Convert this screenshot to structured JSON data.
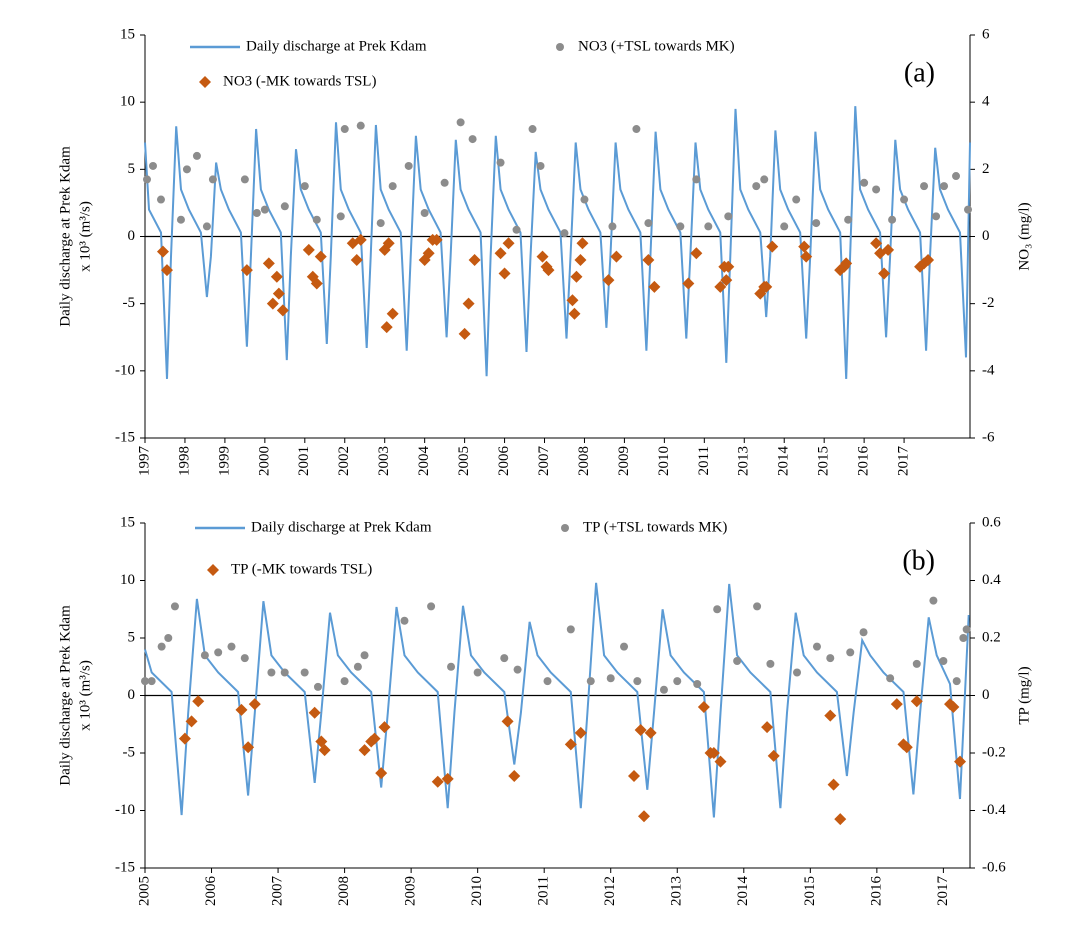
{
  "chart_data": [
    {
      "type": "combo",
      "annotation": "(a)",
      "ylabel": [
        "Daily discharge at Prek Kdam",
        "x 10³ (m³/s)"
      ],
      "y2label": "NO₃ (mg/l)",
      "xlim": [
        1997,
        2017.65
      ],
      "xticks": [
        1997,
        1998,
        1999,
        2000,
        2001,
        2002,
        2003,
        2004,
        2005,
        2006,
        2007,
        2008,
        2009,
        2010,
        2011,
        {
          "value": 2012,
          "label": "2013"
        },
        {
          "value": 2013,
          "label": "2014"
        },
        {
          "value": 2014,
          "label": "2015"
        },
        {
          "value": 2015,
          "label": "2016"
        },
        {
          "value": 2016,
          "label": "2017"
        }
      ],
      "ylim": [
        -15,
        15
      ],
      "yticks": [
        -15,
        -10,
        -5,
        0,
        5,
        10,
        15
      ],
      "y2lim": [
        -6,
        6
      ],
      "y2ticks": [
        -6,
        -4,
        -2,
        0,
        2,
        4,
        6
      ],
      "series": [
        {
          "name": "Daily discharge at Prek Kdam",
          "type": "line",
          "color": "#5b9bd5",
          "x": [
            1997,
            1997.1,
            1997.4,
            1997.55,
            1997.65,
            1997.78,
            1997.9,
            1998.1,
            1998.4,
            1998.55,
            1998.65,
            1998.78,
            1998.9,
            1999.1,
            1999.4,
            1999.55,
            1999.65,
            1999.78,
            1999.9,
            2000.1,
            2000.4,
            2000.55,
            2000.65,
            2000.78,
            2000.9,
            2001.1,
            2001.4,
            2001.55,
            2001.65,
            2001.78,
            2001.9,
            2002.1,
            2002.4,
            2002.55,
            2002.65,
            2002.78,
            2002.9,
            2003.1,
            2003.4,
            2003.55,
            2003.65,
            2003.78,
            2003.9,
            2004.1,
            2004.4,
            2004.55,
            2004.65,
            2004.78,
            2004.9,
            2005.1,
            2005.4,
            2005.55,
            2005.65,
            2005.78,
            2005.9,
            2006.1,
            2006.4,
            2006.55,
            2006.65,
            2006.78,
            2006.9,
            2007.1,
            2007.4,
            2007.55,
            2007.65,
            2007.78,
            2007.9,
            2008.1,
            2008.4,
            2008.55,
            2008.65,
            2008.78,
            2008.9,
            2009.1,
            2009.4,
            2009.55,
            2009.65,
            2009.78,
            2009.9,
            2010.1,
            2010.4,
            2010.55,
            2010.65,
            2010.78,
            2010.9,
            2011.1,
            2011.4,
            2011.55,
            2011.65,
            2011.78,
            2011.9,
            2012.1,
            2012.4,
            2012.55,
            2012.65,
            2012.78,
            2012.9,
            2013.1,
            2013.4,
            2013.55,
            2013.65,
            2013.78,
            2013.9,
            2014.1,
            2014.4,
            2014.55,
            2014.65,
            2014.78,
            2014.9,
            2015.1,
            2015.4,
            2015.55,
            2015.65,
            2015.78,
            2015.9,
            2016.1,
            2016.4,
            2016.55,
            2016.65,
            2016.78,
            2016.9,
            2017.1,
            2017.4,
            2017.55,
            2017.65
          ],
          "values": [
            7,
            2,
            0.3,
            -10.6,
            -1.5,
            8.2,
            3.5,
            2,
            0.3,
            -4.5,
            -1.5,
            5.5,
            3.5,
            2,
            0.3,
            -8.2,
            -1.5,
            8,
            3.5,
            2,
            0.3,
            -9.2,
            -1.5,
            6.5,
            3.5,
            2,
            0.3,
            -8,
            -1.5,
            8.5,
            3.5,
            2,
            0.3,
            -8.3,
            -1.5,
            8.3,
            3.5,
            2,
            0.3,
            -8.5,
            -1.5,
            7.5,
            3.5,
            2,
            0.3,
            -7.5,
            -1.5,
            7.2,
            3.5,
            2,
            0.3,
            -10.4,
            -1.5,
            7.5,
            3.5,
            2,
            0.3,
            -8.6,
            -1.5,
            6.3,
            3.5,
            2,
            0.3,
            -7.6,
            -1.5,
            7,
            3.5,
            2,
            0.3,
            -6.8,
            -1.5,
            7,
            3.5,
            2,
            0.3,
            -8.5,
            -1.5,
            7.8,
            3.5,
            2,
            0.3,
            -7.6,
            -1.5,
            7,
            3.5,
            2,
            0.3,
            -9.4,
            -1.5,
            9.5,
            3.5,
            2,
            0.3,
            -6,
            -1.5,
            7.9,
            3.5,
            2,
            0.3,
            -7.6,
            -1.5,
            7.8,
            3.5,
            2,
            0.3,
            -10.6,
            -1.5,
            9.7,
            3.5,
            2,
            0.3,
            -7.5,
            -1.5,
            7.2,
            3.5,
            2,
            0.3,
            -8.5,
            -1.5,
            6.6,
            3.5,
            2,
            0.3,
            -9,
            7
          ]
        },
        {
          "name": "NO3 (+TSL towards MK)",
          "type": "scatter",
          "marker": "circle",
          "axis": "y2",
          "color": "#8c8c8c",
          "x": [
            1997.05,
            1997.2,
            1997.4,
            1997.9,
            1998.05,
            1998.3,
            1998.55,
            1998.7,
            1999.5,
            1999.8,
            2000.0,
            2000.5,
            2001.0,
            2001.3,
            2001.9,
            2002.0,
            2002.4,
            2002.9,
            2003.2,
            2003.6,
            2004.0,
            2004.5,
            2004.9,
            2005.2,
            2005.9,
            2006.3,
            2006.7,
            2006.9,
            2007.5,
            2008.0,
            2008.7,
            2009.3,
            2009.6,
            2010.4,
            2010.8,
            2011.1,
            2011.6,
            2012.3,
            2012.5,
            2013.0,
            2013.3,
            2013.8,
            2014.6,
            2015.0,
            2015.3,
            2015.7,
            2016.0,
            2016.5,
            2016.8,
            2017.0,
            2017.3,
            2017.6
          ],
          "values": [
            1.7,
            2.1,
            1.1,
            0.5,
            2.0,
            2.4,
            0.3,
            1.7,
            1.7,
            0.7,
            0.8,
            0.9,
            1.5,
            0.5,
            0.6,
            3.2,
            3.3,
            0.4,
            1.5,
            2.1,
            0.7,
            1.6,
            3.4,
            2.9,
            2.2,
            0.2,
            3.2,
            2.1,
            0.1,
            1.1,
            0.3,
            3.2,
            0.4,
            0.3,
            1.7,
            0.3,
            0.6,
            1.5,
            1.7,
            0.3,
            1.1,
            0.4,
            0.5,
            1.6,
            1.4,
            0.5,
            1.1,
            1.5,
            0.6,
            1.5,
            1.8,
            0.8
          ]
        },
        {
          "name": "NO3 (-MK towards TSL)",
          "type": "scatter",
          "marker": "diamond",
          "axis": "y2",
          "color": "#c55a11",
          "x": [
            1997.45,
            1997.55,
            1999.55,
            2000.1,
            2000.2,
            2000.3,
            2000.35,
            2000.45,
            2001.1,
            2001.2,
            2001.3,
            2001.4,
            2002.2,
            2002.3,
            2002.4,
            2003.0,
            2003.05,
            2003.1,
            2003.2,
            2004.0,
            2004.1,
            2004.2,
            2004.3,
            2005.0,
            2005.1,
            2005.25,
            2005.9,
            2006.0,
            2006.1,
            2006.95,
            2007.05,
            2007.1,
            2007.7,
            2007.75,
            2007.8,
            2007.9,
            2007.95,
            2008.6,
            2008.8,
            2009.6,
            2009.75,
            2010.6,
            2010.8,
            2011.4,
            2011.5,
            2011.55,
            2011.6,
            2012.4,
            2012.5,
            2012.55,
            2012.7,
            2013.5,
            2013.55,
            2014.4,
            2014.5,
            2014.55,
            2015.3,
            2015.4,
            2015.5,
            2015.6,
            2016.4,
            2016.5,
            2016.6
          ],
          "values": [
            -0.45,
            -1.0,
            -1.0,
            -0.8,
            -2.0,
            -1.2,
            -1.7,
            -2.2,
            -0.4,
            -1.2,
            -1.4,
            -0.6,
            -0.2,
            -0.7,
            -0.1,
            -0.4,
            -2.7,
            -0.2,
            -2.3,
            -0.7,
            -0.5,
            -0.1,
            -0.1,
            -2.9,
            -2.0,
            -0.7,
            -0.5,
            -1.1,
            -0.2,
            -0.6,
            -0.9,
            -1.0,
            -1.9,
            -2.3,
            -1.2,
            -0.7,
            -0.2,
            -1.3,
            -0.6,
            -0.7,
            -1.5,
            -1.4,
            -0.5,
            -1.5,
            -0.9,
            -1.3,
            -0.9,
            -1.7,
            -1.5,
            -1.5,
            -0.3,
            -0.3,
            -0.6,
            -1.0,
            -0.9,
            -0.8,
            -0.2,
            -0.5,
            -1.1,
            -0.4,
            -0.9,
            -0.8,
            -0.7
          ]
        }
      ]
    },
    {
      "type": "combo",
      "annotation": "(b)",
      "ylabel": [
        "Daily discharge at Prek Kdam",
        "x 10³ (m³/s)"
      ],
      "y2label": "TP (mg/l)",
      "xlim": [
        2005,
        2017.4
      ],
      "xticks": [
        2005,
        2006,
        2007,
        2008,
        2009,
        2010,
        2011,
        2012,
        2013,
        2014,
        2015,
        2016,
        2017
      ],
      "ylim": [
        -15,
        15
      ],
      "yticks": [
        -15,
        -10,
        -5,
        0,
        5,
        10,
        15
      ],
      "y2lim": [
        -0.6,
        0.6
      ],
      "y2ticks": [
        -0.6,
        -0.4,
        -0.2,
        0,
        0.2,
        0.4,
        0.6
      ],
      "series": [
        {
          "name": "Daily discharge at Prek Kdam",
          "type": "line",
          "color": "#5b9bd5",
          "x": [
            2005,
            2005.1,
            2005.4,
            2005.55,
            2005.65,
            2005.78,
            2005.9,
            2006.1,
            2006.4,
            2006.55,
            2006.65,
            2006.78,
            2006.9,
            2007.1,
            2007.4,
            2007.55,
            2007.65,
            2007.78,
            2007.9,
            2008.1,
            2008.4,
            2008.55,
            2008.65,
            2008.78,
            2008.9,
            2009.1,
            2009.4,
            2009.55,
            2009.65,
            2009.78,
            2009.9,
            2010.1,
            2010.4,
            2010.55,
            2010.65,
            2010.78,
            2010.9,
            2011.1,
            2011.4,
            2011.55,
            2011.65,
            2011.78,
            2011.9,
            2012.1,
            2012.4,
            2012.55,
            2012.65,
            2012.78,
            2012.9,
            2013.1,
            2013.4,
            2013.55,
            2013.65,
            2013.78,
            2013.9,
            2014.1,
            2014.4,
            2014.55,
            2014.65,
            2014.78,
            2014.9,
            2015.1,
            2015.4,
            2015.55,
            2015.65,
            2015.78,
            2015.9,
            2016.1,
            2016.4,
            2016.55,
            2016.65,
            2016.78,
            2016.9,
            2017.1,
            2017.25,
            2017.38
          ],
          "values": [
            4,
            2,
            0.3,
            -10.4,
            -1.5,
            8.4,
            3.5,
            2,
            0.3,
            -8.7,
            -1.5,
            8.2,
            3.5,
            2,
            0.3,
            -7.6,
            -1.5,
            7.2,
            3.5,
            2,
            0.3,
            -8,
            -1.5,
            7.7,
            3.5,
            2,
            0.3,
            -9.8,
            -1.5,
            7.8,
            3.5,
            2,
            0.3,
            -6,
            -1.5,
            6.4,
            3.5,
            2,
            0.3,
            -9.8,
            -1.5,
            9.8,
            3.5,
            2,
            0.3,
            -8.2,
            -1.5,
            7.5,
            3.5,
            2,
            0.3,
            -10.6,
            -1.5,
            9.7,
            3.5,
            2,
            0.3,
            -9.8,
            -1.5,
            7.2,
            3.5,
            2,
            0.3,
            -7,
            -1.5,
            4.8,
            3.5,
            2,
            0.3,
            -8.6,
            -1.5,
            6.8,
            3.5,
            1,
            -9,
            7
          ]
        },
        {
          "name": "TP (+TSL towards MK)",
          "type": "scatter",
          "marker": "circle",
          "axis": "y2",
          "color": "#8c8c8c",
          "x": [
            2005.0,
            2005.1,
            2005.25,
            2005.35,
            2005.45,
            2005.9,
            2006.1,
            2006.3,
            2006.5,
            2006.9,
            2007.1,
            2007.4,
            2007.6,
            2008.0,
            2008.2,
            2008.3,
            2008.9,
            2009.3,
            2009.6,
            2010.0,
            2010.4,
            2010.6,
            2011.05,
            2011.4,
            2011.7,
            2012.0,
            2012.2,
            2012.4,
            2012.8,
            2013.0,
            2013.3,
            2013.6,
            2013.9,
            2014.2,
            2014.4,
            2014.8,
            2015.1,
            2015.3,
            2015.6,
            2015.8,
            2016.2,
            2016.6,
            2016.85,
            2017.0,
            2017.2,
            2017.3,
            2017.35
          ],
          "values": [
            0.05,
            0.05,
            0.17,
            0.2,
            0.31,
            0.14,
            0.15,
            0.17,
            0.13,
            0.08,
            0.08,
            0.08,
            0.03,
            0.05,
            0.1,
            0.14,
            0.26,
            0.31,
            0.1,
            0.08,
            0.13,
            0.09,
            0.05,
            0.23,
            0.05,
            0.06,
            0.17,
            0.05,
            0.02,
            0.05,
            0.04,
            0.3,
            0.12,
            0.31,
            0.11,
            0.08,
            0.17,
            0.13,
            0.15,
            0.22,
            0.06,
            0.11,
            0.33,
            0.12,
            0.05,
            0.2,
            0.23
          ]
        },
        {
          "name": "TP (-MK towards TSL)",
          "type": "scatter",
          "marker": "diamond",
          "axis": "y2",
          "color": "#c55a11",
          "x": [
            2005.6,
            2005.7,
            2005.8,
            2006.45,
            2006.55,
            2006.65,
            2007.55,
            2007.65,
            2007.7,
            2008.3,
            2008.4,
            2008.45,
            2008.55,
            2008.6,
            2009.4,
            2009.55,
            2010.45,
            2010.55,
            2011.4,
            2011.55,
            2012.35,
            2012.45,
            2012.5,
            2012.6,
            2013.4,
            2013.5,
            2013.55,
            2013.65,
            2014.35,
            2014.45,
            2015.3,
            2015.35,
            2015.45,
            2016.3,
            2016.4,
            2016.45,
            2016.6,
            2017.1,
            2017.15,
            2017.25
          ],
          "values": [
            -0.15,
            -0.09,
            -0.02,
            -0.05,
            -0.18,
            -0.03,
            -0.06,
            -0.16,
            -0.19,
            -0.19,
            -0.16,
            -0.15,
            -0.27,
            -0.11,
            -0.3,
            -0.29,
            -0.09,
            -0.28,
            -0.17,
            -0.13,
            -0.28,
            -0.12,
            -0.42,
            -0.13,
            -0.04,
            -0.2,
            -0.2,
            -0.23,
            -0.11,
            -0.21,
            -0.07,
            -0.31,
            -0.43,
            -0.03,
            -0.17,
            -0.18,
            -0.02,
            -0.03,
            -0.04,
            -0.23
          ]
        }
      ]
    }
  ]
}
